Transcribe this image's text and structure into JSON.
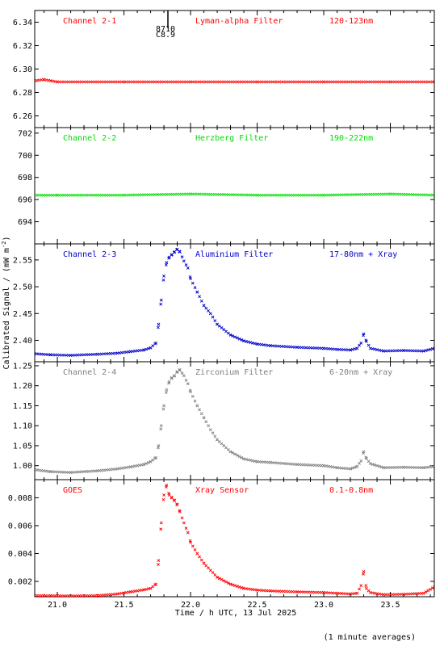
{
  "colors": {
    "red": "#ff0000",
    "green": "#00dd00",
    "blue": "#0000cc",
    "gray": "#808080",
    "axis": "#000000"
  },
  "figure": {
    "x_axis_label": "Time / h UTC, 13 Jul 2025",
    "y_axis_label": "Calibrated Signal / (mW m",
    "y_axis_label_sup": "-2",
    "y_axis_label_end": ")",
    "footnote": "(1 minute averages)"
  },
  "chart_data": [
    {
      "type": "scatter",
      "channel": "Channel 2-1",
      "filter": "Lyman-alpha Filter",
      "band": "120-123nm",
      "color": "red",
      "xlim": [
        20.83,
        23.83
      ],
      "ylim": [
        6.25,
        6.35
      ],
      "yticks": [
        6.26,
        6.28,
        6.3,
        6.32,
        6.34
      ],
      "ytick_labels": [
        "6.26",
        "6.28",
        "6.30",
        "6.32",
        "6.34"
      ],
      "flare_marker": {
        "x": 21.83,
        "label_top": "8710",
        "label_bottom": "C8.9"
      },
      "series": [
        {
          "x": [
            20.83,
            20.9,
            20.95,
            21.0,
            21.5,
            22.0,
            22.5,
            23.0,
            23.5,
            23.83
          ],
          "y": [
            6.29,
            6.291,
            6.29,
            6.289,
            6.289,
            6.289,
            6.289,
            6.289,
            6.289,
            6.289
          ]
        }
      ]
    },
    {
      "type": "scatter",
      "channel": "Channel 2-2",
      "filter": "Herzberg Filter",
      "band": "190-222nm",
      "color": "green",
      "xlim": [
        20.83,
        23.83
      ],
      "ylim": [
        692.0,
        702.5
      ],
      "yticks": [
        694,
        696,
        698,
        700,
        702
      ],
      "ytick_labels": [
        "694",
        "696",
        "698",
        "700",
        "702"
      ],
      "series": [
        {
          "x": [
            20.83,
            21.0,
            21.5,
            22.0,
            22.5,
            23.0,
            23.5,
            23.83
          ],
          "y": [
            696.4,
            696.4,
            696.4,
            696.5,
            696.4,
            696.4,
            696.5,
            696.4
          ]
        }
      ]
    },
    {
      "type": "scatter",
      "channel": "Channel 2-3",
      "filter": "Aluminium Filter",
      "band": "17-80nm + Xray",
      "color": "blue",
      "xlim": [
        20.83,
        23.83
      ],
      "ylim": [
        2.36,
        2.58
      ],
      "yticks": [
        2.4,
        2.45,
        2.5,
        2.55
      ],
      "ytick_labels": [
        "2.40",
        "2.45",
        "2.50",
        "2.55"
      ],
      "series": [
        {
          "x": [
            20.83,
            20.95,
            21.1,
            21.3,
            21.45,
            21.55,
            21.65,
            21.7,
            21.74,
            21.76,
            21.78,
            21.8,
            21.82,
            21.84,
            21.86,
            21.88,
            21.9,
            21.92,
            21.95,
            21.98,
            22.0,
            22.05,
            22.1,
            22.15,
            22.2,
            22.3,
            22.4,
            22.5,
            22.6,
            22.8,
            23.0,
            23.1,
            23.2,
            23.25,
            23.28,
            23.3,
            23.32,
            23.35,
            23.45,
            23.6,
            23.75,
            23.83
          ],
          "y": [
            2.375,
            2.373,
            2.372,
            2.374,
            2.376,
            2.379,
            2.382,
            2.386,
            2.395,
            2.43,
            2.475,
            2.52,
            2.545,
            2.555,
            2.56,
            2.565,
            2.57,
            2.565,
            2.548,
            2.535,
            2.515,
            2.49,
            2.465,
            2.45,
            2.43,
            2.41,
            2.399,
            2.393,
            2.39,
            2.387,
            2.385,
            2.383,
            2.382,
            2.385,
            2.395,
            2.412,
            2.398,
            2.385,
            2.38,
            2.381,
            2.38,
            2.385
          ]
        }
      ]
    },
    {
      "type": "scatter",
      "channel": "Channel 2-4",
      "filter": "Zirconium Filter",
      "band": "6-20nm + Xray",
      "color": "gray",
      "xlim": [
        20.83,
        23.83
      ],
      "ylim": [
        0.965,
        1.26
      ],
      "yticks": [
        1.0,
        1.05,
        1.1,
        1.15,
        1.2,
        1.25
      ],
      "ytick_labels": [
        "1.00",
        "1.05",
        "1.10",
        "1.15",
        "1.20",
        "1.25"
      ],
      "series": [
        {
          "x": [
            20.83,
            20.95,
            21.1,
            21.3,
            21.45,
            21.55,
            21.65,
            21.7,
            21.74,
            21.76,
            21.78,
            21.8,
            21.82,
            21.84,
            21.86,
            21.88,
            21.9,
            21.92,
            21.95,
            21.98,
            22.0,
            22.05,
            22.1,
            22.15,
            22.2,
            22.3,
            22.4,
            22.5,
            22.6,
            22.8,
            23.0,
            23.1,
            23.2,
            23.25,
            23.28,
            23.3,
            23.32,
            23.35,
            23.45,
            23.6,
            23.75,
            23.83
          ],
          "y": [
            0.99,
            0.985,
            0.983,
            0.987,
            0.992,
            0.997,
            1.003,
            1.01,
            1.02,
            1.05,
            1.1,
            1.15,
            1.19,
            1.21,
            1.22,
            1.225,
            1.235,
            1.24,
            1.225,
            1.205,
            1.185,
            1.15,
            1.12,
            1.09,
            1.065,
            1.035,
            1.017,
            1.01,
            1.008,
            1.003,
            1.0,
            0.995,
            0.992,
            0.998,
            1.012,
            1.035,
            1.018,
            1.005,
            0.995,
            0.996,
            0.995,
            0.998
          ]
        }
      ]
    },
    {
      "type": "scatter",
      "channel": "GOES",
      "filter": "Xray Sensor",
      "band": "0.1-0.8nm",
      "color": "red",
      "xlim": [
        20.83,
        23.83
      ],
      "ylim": [
        0.0009,
        0.0093
      ],
      "yticks": [
        0.002,
        0.004,
        0.006,
        0.008
      ],
      "ytick_labels": [
        "0.002",
        "0.004",
        "0.006",
        "0.008"
      ],
      "series": [
        {
          "x": [
            20.83,
            20.95,
            21.1,
            21.3,
            21.45,
            21.55,
            21.65,
            21.7,
            21.74,
            21.76,
            21.78,
            21.8,
            21.82,
            21.84,
            21.86,
            21.88,
            21.9,
            21.92,
            21.95,
            21.98,
            22.0,
            22.05,
            22.1,
            22.15,
            22.2,
            22.3,
            22.4,
            22.5,
            22.6,
            22.8,
            23.0,
            23.1,
            23.2,
            23.25,
            23.28,
            23.3,
            23.32,
            23.35,
            23.45,
            23.6,
            23.75,
            23.83
          ],
          "y": [
            0.00098,
            0.00097,
            0.00096,
            0.00098,
            0.0011,
            0.00125,
            0.0014,
            0.0015,
            0.0018,
            0.0035,
            0.0062,
            0.0082,
            0.0089,
            0.0082,
            0.008,
            0.0078,
            0.0075,
            0.007,
            0.0062,
            0.0055,
            0.0048,
            0.004,
            0.0033,
            0.0028,
            0.0023,
            0.0018,
            0.0015,
            0.00138,
            0.00132,
            0.00125,
            0.0012,
            0.00115,
            0.0011,
            0.00115,
            0.0017,
            0.0027,
            0.0015,
            0.0012,
            0.00105,
            0.00108,
            0.00115,
            0.0016
          ]
        }
      ]
    }
  ],
  "x_axis": {
    "ticks": [
      21.0,
      21.5,
      22.0,
      22.5,
      23.0,
      23.5
    ],
    "tick_labels": [
      "21.0",
      "21.5",
      "22.0",
      "22.5",
      "23.0",
      "23.5"
    ]
  }
}
